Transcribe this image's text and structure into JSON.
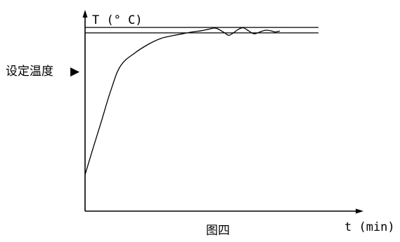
{
  "chart_data": {
    "type": "line",
    "title": "",
    "ylabel": "T (° C)",
    "xlabel": "t (min)",
    "caption": "图四",
    "setpoint_label": "设定温度",
    "setpoint_marker": "▶",
    "grid": false,
    "legend": "none",
    "axis_ticks": false,
    "x": [
      0,
      1.5,
      3.5,
      5.5,
      7.5,
      10.5,
      13.5,
      16,
      18.5,
      20.5,
      22.5,
      24.5,
      26,
      27.5,
      29.2,
      30.2,
      31.1,
      32.3,
      33.3,
      34.5,
      35.6,
      36.9,
      38.1,
      39.3,
      40,
      41
    ],
    "y": [
      20,
      33,
      50,
      67,
      80,
      87,
      92,
      95,
      96.5,
      97.5,
      98.5,
      99.2,
      100,
      100.6,
      98.3,
      96.7,
      97.8,
      100,
      100.8,
      99,
      97.5,
      98.6,
      99.5,
      99,
      98.5,
      99
    ],
    "setpoint_band": [
      98,
      101
    ],
    "xlim": [
      0,
      58
    ],
    "ylim": [
      0,
      113
    ],
    "colors": {
      "line": "#000000",
      "background": "#ffffff"
    }
  }
}
